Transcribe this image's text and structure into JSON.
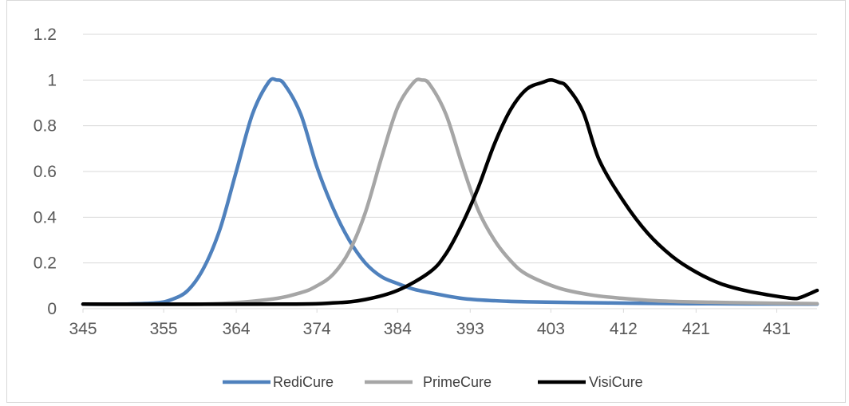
{
  "chart_data": {
    "type": "line",
    "title": "",
    "xlabel": "",
    "ylabel": "",
    "ylim": [
      0,
      1.2
    ],
    "yticks": [
      "0",
      "0.2",
      "0.4",
      "0.6",
      "0.8",
      "1",
      "1.2"
    ],
    "xlim": [
      345,
      436
    ],
    "xticks": [
      "345",
      "355",
      "364",
      "374",
      "384",
      "393",
      "403",
      "412",
      "421",
      "431"
    ],
    "grid": "horizontal",
    "legend_position": "bottom",
    "series": [
      {
        "name": "RediCure",
        "color": "#4f81bd",
        "x": [
          345,
          350,
          354,
          356,
          358,
          360,
          362,
          364,
          366,
          368,
          369,
          370,
          372,
          374,
          376,
          378,
          380,
          382,
          384,
          386,
          388,
          392,
          396,
          400,
          410,
          420,
          436
        ],
        "y": [
          0.02,
          0.02,
          0.025,
          0.04,
          0.08,
          0.18,
          0.35,
          0.6,
          0.85,
          0.99,
          1.0,
          0.98,
          0.85,
          0.62,
          0.44,
          0.3,
          0.2,
          0.14,
          0.11,
          0.085,
          0.07,
          0.045,
          0.035,
          0.03,
          0.025,
          0.022,
          0.02
        ]
      },
      {
        "name": "PrimeCure",
        "color": "#a6a6a6",
        "x": [
          345,
          360,
          368,
          372,
          374,
          376,
          378,
          380,
          382,
          384,
          386,
          387,
          388,
          390,
          392,
          394,
          396,
          398,
          400,
          404,
          408,
          412,
          416,
          420,
          428,
          436
        ],
        "y": [
          0.02,
          0.02,
          0.04,
          0.07,
          0.1,
          0.15,
          0.25,
          0.42,
          0.66,
          0.88,
          0.99,
          1.0,
          0.98,
          0.85,
          0.63,
          0.43,
          0.3,
          0.21,
          0.15,
          0.09,
          0.06,
          0.045,
          0.035,
          0.03,
          0.025,
          0.022
        ]
      },
      {
        "name": "VisiCure",
        "color": "#000000",
        "x": [
          345,
          370,
          376,
          380,
          384,
          388,
          390,
          392,
          394,
          396,
          398,
          400,
          402,
          403,
          404,
          405,
          407,
          409,
          412,
          415,
          418,
          421,
          424,
          427,
          430,
          433,
          434,
          436
        ],
        "y": [
          0.02,
          0.02,
          0.025,
          0.04,
          0.08,
          0.16,
          0.24,
          0.37,
          0.53,
          0.72,
          0.87,
          0.96,
          0.99,
          1.0,
          0.99,
          0.97,
          0.86,
          0.65,
          0.47,
          0.33,
          0.23,
          0.16,
          0.11,
          0.08,
          0.06,
          0.045,
          0.05,
          0.08
        ]
      }
    ]
  }
}
